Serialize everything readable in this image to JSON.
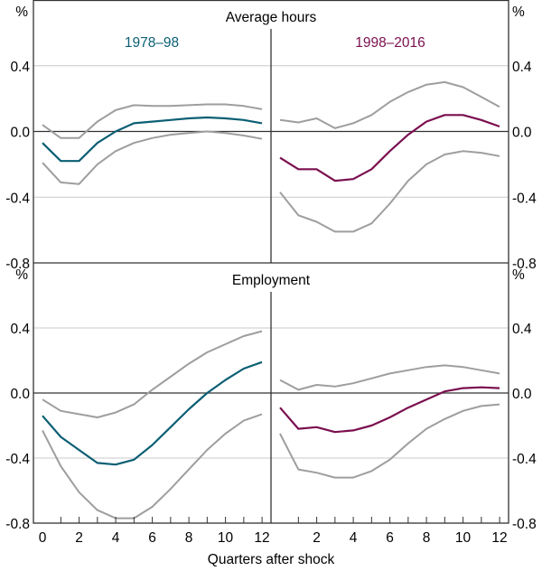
{
  "chart_data": {
    "type": "line",
    "xlabel": "Quarters after shock",
    "unit_label": "%",
    "x": [
      0,
      1,
      2,
      3,
      4,
      5,
      6,
      7,
      8,
      9,
      10,
      11,
      12
    ],
    "x_tick_labels_left": [
      "0",
      "2",
      "4",
      "6",
      "8",
      "10",
      "12"
    ],
    "x_tick_labels_right": [
      "2",
      "4",
      "6",
      "8",
      "10",
      "12"
    ],
    "ylim": [
      -0.8,
      0.8
    ],
    "y_ticks": [
      0.4,
      0.0,
      -0.4,
      -0.8
    ],
    "y_tick_labels": [
      "0.4",
      "0.0",
      "-0.4",
      "-0.8"
    ],
    "grid": true,
    "colors": {
      "early": "#0b5f74",
      "late": "#7a0f4f",
      "band": "#9e9e9e",
      "grid": "#c8c8c8",
      "axis": "#333333"
    },
    "panels": [
      {
        "title": "Average hours",
        "periods": [
          {
            "name": "1978–98",
            "key": "early",
            "series": [
              {
                "name": "central",
                "values": [
                  -0.07,
                  -0.18,
                  -0.18,
                  -0.07,
                  0.0,
                  0.05,
                  0.06,
                  0.07,
                  0.08,
                  0.085,
                  0.08,
                  0.07,
                  0.05
                ]
              },
              {
                "name": "upper",
                "values": [
                  0.04,
                  -0.04,
                  -0.04,
                  0.06,
                  0.13,
                  0.16,
                  0.155,
                  0.155,
                  0.16,
                  0.165,
                  0.165,
                  0.155,
                  0.135
                ]
              },
              {
                "name": "lower",
                "values": [
                  -0.19,
                  -0.31,
                  -0.32,
                  -0.2,
                  -0.12,
                  -0.07,
                  -0.04,
                  -0.02,
                  -0.01,
                  0.0,
                  -0.01,
                  -0.025,
                  -0.045
                ]
              }
            ]
          },
          {
            "name": "1998–2016",
            "key": "late",
            "series": [
              {
                "name": "central",
                "values": [
                  -0.16,
                  -0.23,
                  -0.23,
                  -0.3,
                  -0.29,
                  -0.23,
                  -0.12,
                  -0.02,
                  0.06,
                  0.1,
                  0.1,
                  0.07,
                  0.03
                ]
              },
              {
                "name": "upper",
                "values": [
                  0.07,
                  0.055,
                  0.08,
                  0.02,
                  0.05,
                  0.1,
                  0.18,
                  0.24,
                  0.285,
                  0.3,
                  0.27,
                  0.21,
                  0.15
                ]
              },
              {
                "name": "lower",
                "values": [
                  -0.37,
                  -0.51,
                  -0.55,
                  -0.61,
                  -0.61,
                  -0.56,
                  -0.44,
                  -0.3,
                  -0.2,
                  -0.14,
                  -0.12,
                  -0.13,
                  -0.15
                ]
              }
            ]
          }
        ]
      },
      {
        "title": "Employment",
        "periods": [
          {
            "name": "1978–98",
            "key": "early",
            "series": [
              {
                "name": "central",
                "values": [
                  -0.14,
                  -0.27,
                  -0.35,
                  -0.43,
                  -0.44,
                  -0.41,
                  -0.32,
                  -0.21,
                  -0.1,
                  0.0,
                  0.08,
                  0.15,
                  0.19
                ]
              },
              {
                "name": "upper",
                "values": [
                  -0.04,
                  -0.11,
                  -0.13,
                  -0.15,
                  -0.12,
                  -0.07,
                  0.02,
                  0.1,
                  0.18,
                  0.25,
                  0.3,
                  0.35,
                  0.38
                ]
              },
              {
                "name": "lower",
                "values": [
                  -0.23,
                  -0.45,
                  -0.61,
                  -0.72,
                  -0.77,
                  -0.77,
                  -0.7,
                  -0.59,
                  -0.47,
                  -0.35,
                  -0.25,
                  -0.17,
                  -0.13
                ]
              }
            ]
          },
          {
            "name": "1998–2016",
            "key": "late",
            "series": [
              {
                "name": "central",
                "values": [
                  -0.09,
                  -0.22,
                  -0.21,
                  -0.24,
                  -0.23,
                  -0.2,
                  -0.15,
                  -0.09,
                  -0.04,
                  0.01,
                  0.03,
                  0.035,
                  0.03
                ]
              },
              {
                "name": "upper",
                "values": [
                  0.08,
                  0.02,
                  0.05,
                  0.04,
                  0.06,
                  0.09,
                  0.12,
                  0.14,
                  0.16,
                  0.17,
                  0.16,
                  0.14,
                  0.12
                ]
              },
              {
                "name": "lower",
                "values": [
                  -0.25,
                  -0.47,
                  -0.49,
                  -0.52,
                  -0.52,
                  -0.48,
                  -0.41,
                  -0.31,
                  -0.22,
                  -0.16,
                  -0.11,
                  -0.08,
                  -0.07
                ]
              }
            ]
          }
        ]
      }
    ]
  }
}
